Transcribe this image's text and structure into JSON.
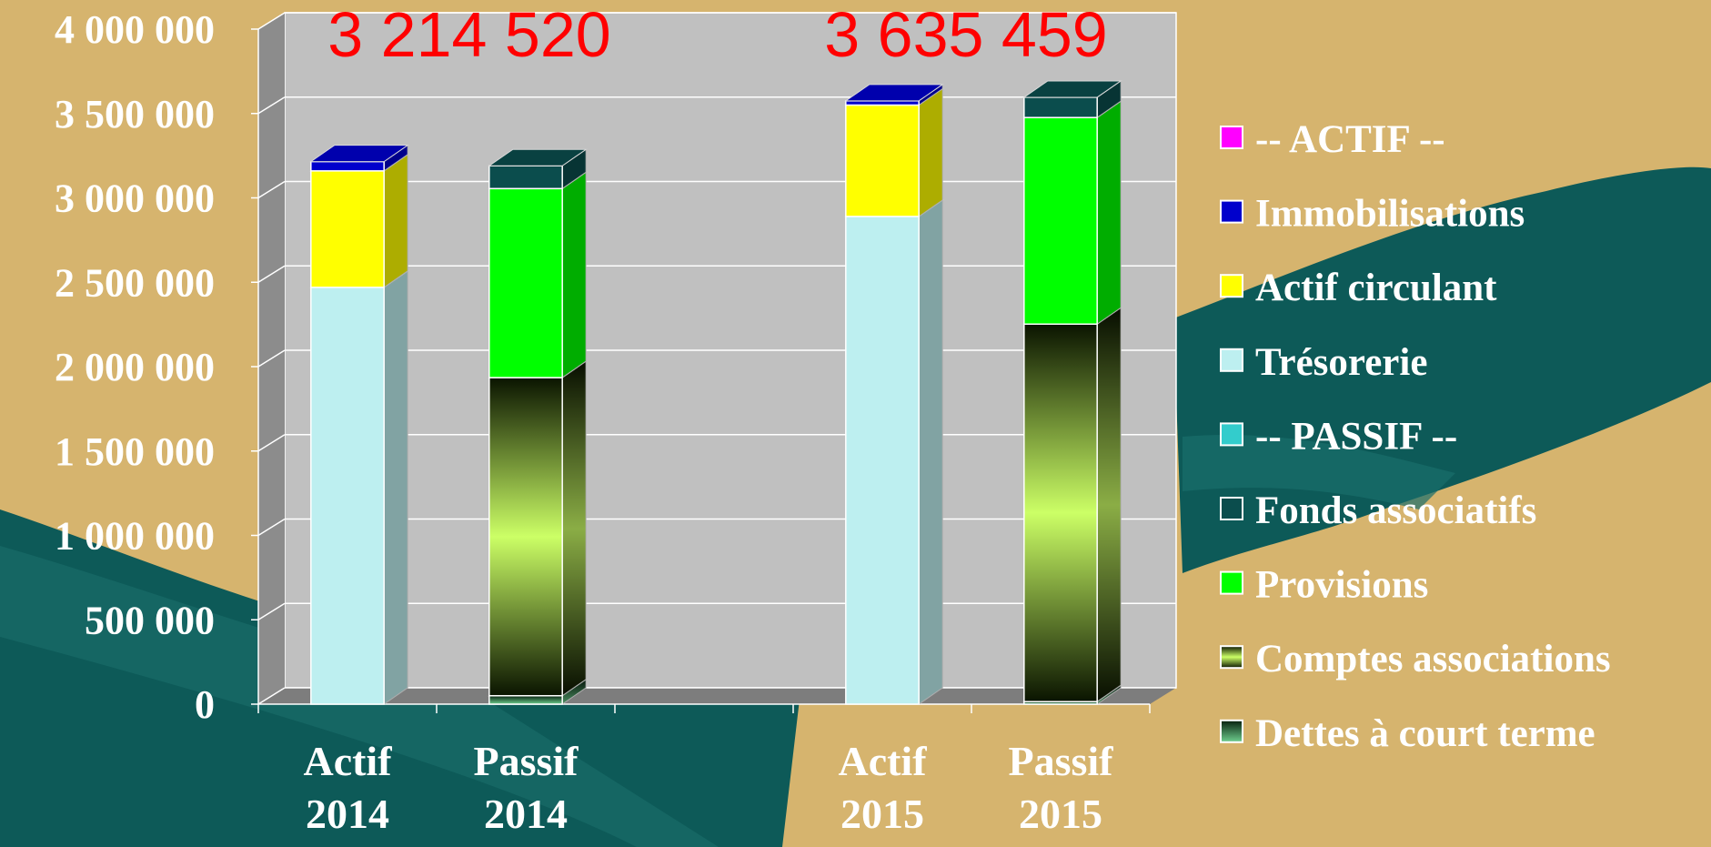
{
  "chart_data": {
    "type": "bar3d_stacked",
    "categories": [
      "Actif 2014",
      "Passif 2014",
      null,
      "Actif 2015",
      "Passif 2015"
    ],
    "series": [
      {
        "name": "-- ACTIF --",
        "color": "#ff00ff",
        "values": [
          null,
          null,
          null,
          null,
          null
        ]
      },
      {
        "name": "Immobilisations",
        "color": "#0000cc",
        "values": [
          55000,
          null,
          null,
          25000,
          null
        ]
      },
      {
        "name": "Actif circulant",
        "color": "#ffff00",
        "values": [
          690000,
          null,
          null,
          660000,
          null
        ]
      },
      {
        "name": "Trésorerie",
        "color": "#bdeff0",
        "values": [
          2470000,
          null,
          null,
          2890000,
          null
        ]
      },
      {
        "name": "-- PASSIF --",
        "color": "#33cccc",
        "values": [
          null,
          null,
          null,
          null,
          null
        ]
      },
      {
        "name": "Fonds associatifs",
        "color": "#0b4d4d",
        "values": [
          null,
          135000,
          null,
          null,
          120000
        ]
      },
      {
        "name": "Provisions",
        "color": "#00ff00",
        "values": [
          null,
          1120000,
          null,
          null,
          1224000
        ]
      },
      {
        "name": "Comptes associations",
        "color": "#99cc33",
        "gradient": [
          "#0a1400",
          "#ccff66",
          "#0a1400"
        ],
        "values": [
          null,
          1885000,
          null,
          null,
          2237000
        ]
      },
      {
        "name": "Dettes à court terme",
        "color": "#2e8b57",
        "gradient": [
          "#06200e",
          "#6fcf8f"
        ],
        "values": [
          null,
          50000,
          null,
          null,
          15000
        ]
      }
    ],
    "annotations": [
      "3 214 520",
      "3 635 459"
    ],
    "ylim": [
      0,
      4000000
    ],
    "yticks": [
      {
        "value": 0,
        "label": "0"
      },
      {
        "value": 500000,
        "label": "500 000"
      },
      {
        "value": 1000000,
        "label": "1 000 000"
      },
      {
        "value": 1500000,
        "label": "1 500 000"
      },
      {
        "value": 2000000,
        "label": "2 000 000"
      },
      {
        "value": 2500000,
        "label": "2 500 000"
      },
      {
        "value": 3000000,
        "label": "3 000 000"
      },
      {
        "value": 3500000,
        "label": "3 500 000"
      },
      {
        "value": 4000000,
        "label": "4 000 000"
      }
    ],
    "grid": true
  }
}
